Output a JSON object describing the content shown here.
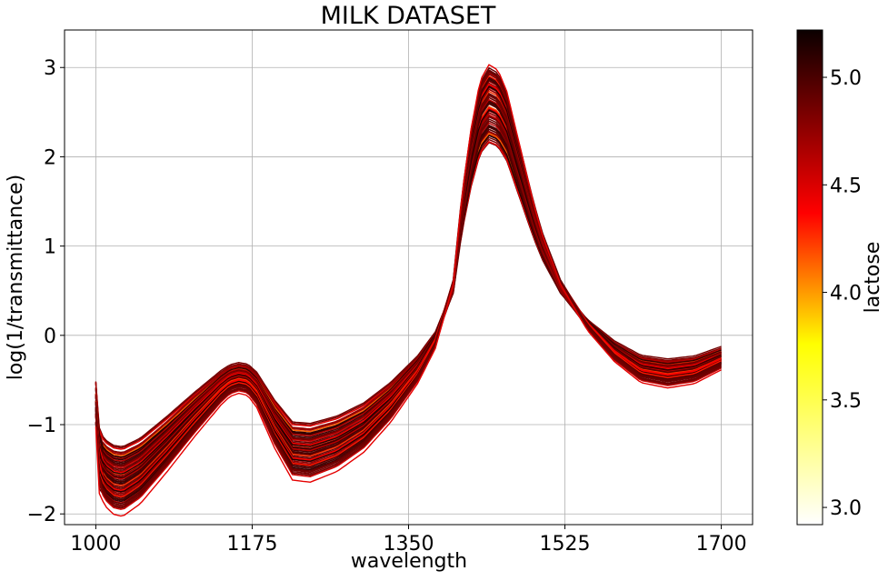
{
  "chart_data": {
    "type": "line",
    "title": "MILK DATASET",
    "xlabel": "wavelength",
    "ylabel": "log(1/transmittance)",
    "xlim": [
      965,
      1735
    ],
    "ylim": [
      -2.12,
      3.42
    ],
    "xticks": [
      1000,
      1175,
      1350,
      1525,
      1700
    ],
    "xtick_labels": [
      "1000",
      "1175",
      "1350",
      "1525",
      "1700"
    ],
    "yticks": [
      -2,
      -1,
      0,
      1,
      2,
      3
    ],
    "ytick_labels": [
      "−2",
      "−1",
      "0",
      "1",
      "2",
      "3"
    ],
    "grid": true,
    "colorbar": {
      "label": "lactose",
      "colormap": "hot_r",
      "range": [
        2.92,
        5.22
      ],
      "ticks": [
        3.0,
        3.5,
        4.0,
        4.5,
        5.0
      ],
      "tick_labels": [
        "3.0",
        "3.5",
        "4.0",
        "4.5",
        "5.0"
      ]
    },
    "base_spectrum": {
      "wavelength": [
        1000,
        1002,
        1005,
        1010,
        1020,
        1030,
        1050,
        1080,
        1110,
        1140,
        1150,
        1160,
        1170,
        1180,
        1200,
        1220,
        1240,
        1270,
        1300,
        1330,
        1360,
        1380,
        1400,
        1410,
        1420,
        1430,
        1440,
        1450,
        1460,
        1470,
        1480,
        1490,
        1500,
        1520,
        1550,
        1580,
        1610,
        1640,
        1670,
        1700
      ],
      "value": [
        -0.75,
        -1.3,
        -1.42,
        -1.52,
        -1.6,
        -1.62,
        -1.5,
        -1.2,
        -0.88,
        -0.58,
        -0.5,
        -0.47,
        -0.49,
        -0.6,
        -0.98,
        -1.28,
        -1.3,
        -1.2,
        -1.02,
        -0.74,
        -0.38,
        -0.05,
        0.55,
        1.4,
        2.0,
        2.45,
        2.6,
        2.55,
        2.35,
        2.0,
        1.65,
        1.3,
        1.0,
        0.55,
        0.12,
        -0.17,
        -0.37,
        -0.42,
        -0.38,
        -0.25
      ]
    },
    "series_count": 60,
    "note_series": "Each series is a milk sample spectrum; line colour encodes the lactose value of the sample"
  }
}
